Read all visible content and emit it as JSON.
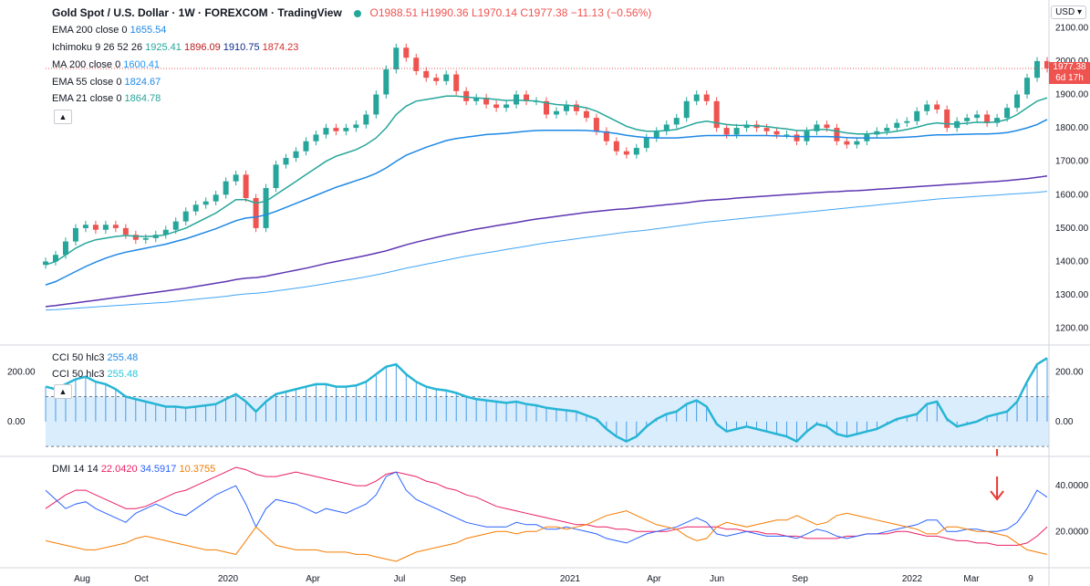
{
  "header": {
    "symbol": "Gold Spot / U.S. Dollar · 1W · FOREXCOM · TradingView",
    "open": "O1988.51",
    "high": "H1990.36",
    "low": "L1970.14",
    "close": "C1977.38",
    "change": "−11.13 (−0.56%)"
  },
  "currency": "USD",
  "last_price": {
    "value": "1977.38",
    "countdown": "6d 17h"
  },
  "legends": {
    "ema200": {
      "label": "EMA 200 close 0",
      "value": "1655.54",
      "color": "#1e88e5"
    },
    "ichimoku": {
      "label": "Ichimoku 9 26 52 26",
      "v1": "1925.41",
      "v2": "1896.09",
      "v3": "1910.75",
      "v4": "1874.23"
    },
    "ma200": {
      "label": "MA 200 close 0",
      "value": "1600.41",
      "color": "#2196f3"
    },
    "ema55": {
      "label": "EMA 55 close 0",
      "value": "1824.67",
      "color": "#1e88e5"
    },
    "ema21": {
      "label": "EMA 21 close 0",
      "value": "1864.78",
      "color": "#26a69a"
    },
    "cci_a": {
      "label": "CCI 50 hlc3",
      "value": "255.48"
    },
    "cci_b": {
      "label": "CCI 50 hlc3",
      "value": "255.48"
    },
    "dmi": {
      "label": "DMI 14 14",
      "adx": "22.0420",
      "plus": "34.5917",
      "minus": "10.3755"
    }
  },
  "chart_data": {
    "type": "line",
    "ylim": [
      1150,
      2150
    ],
    "price_ticks": [
      "2100.00",
      "2000.00",
      "1900.00",
      "1800.00",
      "1700.00",
      "1600.00",
      "1500.00",
      "1400.00",
      "1300.00",
      "1200.00"
    ],
    "cci_ticks": [
      "200.00",
      "0.00"
    ],
    "dmi_ticks": [
      "40.0000",
      "20.0000"
    ],
    "x_labels": [
      "Aug",
      "Oct",
      "2020",
      "Apr",
      "Jul",
      "Sep",
      "2021",
      "Apr",
      "Jun",
      "Sep",
      "2022",
      "Mar",
      "9"
    ],
    "cci_levels": [
      100,
      -100
    ],
    "price": [
      1400,
      1420,
      1460,
      1500,
      1510,
      1495,
      1510,
      1500,
      1480,
      1465,
      1470,
      1480,
      1495,
      1520,
      1550,
      1570,
      1580,
      1600,
      1640,
      1660,
      1590,
      1500,
      1620,
      1690,
      1710,
      1730,
      1760,
      1780,
      1800,
      1790,
      1800,
      1810,
      1840,
      1900,
      1975,
      2040,
      2010,
      1970,
      1950,
      1940,
      1960,
      1910,
      1880,
      1890,
      1870,
      1860,
      1870,
      1900,
      1880,
      1880,
      1840,
      1850,
      1870,
      1850,
      1830,
      1790,
      1760,
      1730,
      1720,
      1740,
      1770,
      1790,
      1810,
      1830,
      1880,
      1900,
      1880,
      1800,
      1780,
      1800,
      1810,
      1800,
      1790,
      1780,
      1780,
      1760,
      1790,
      1810,
      1800,
      1760,
      1750,
      1760,
      1780,
      1790,
      1800,
      1815,
      1820,
      1850,
      1870,
      1855,
      1800,
      1820,
      1830,
      1840,
      1815,
      1830,
      1860,
      1900,
      1950,
      2000,
      1978
    ],
    "ema21": [
      1390,
      1400,
      1420,
      1440,
      1455,
      1465,
      1470,
      1475,
      1478,
      1476,
      1475,
      1476,
      1480,
      1490,
      1500,
      1515,
      1530,
      1545,
      1565,
      1585,
      1585,
      1575,
      1580,
      1600,
      1620,
      1640,
      1660,
      1680,
      1700,
      1715,
      1725,
      1735,
      1750,
      1770,
      1800,
      1840,
      1865,
      1880,
      1885,
      1890,
      1895,
      1895,
      1892,
      1890,
      1888,
      1885,
      1882,
      1883,
      1882,
      1880,
      1875,
      1870,
      1868,
      1865,
      1860,
      1850,
      1835,
      1820,
      1805,
      1795,
      1790,
      1790,
      1792,
      1795,
      1805,
      1815,
      1820,
      1815,
      1810,
      1808,
      1807,
      1806,
      1804,
      1800,
      1797,
      1792,
      1792,
      1795,
      1795,
      1790,
      1785,
      1782,
      1782,
      1784,
      1786,
      1790,
      1795,
      1802,
      1810,
      1815,
      1812,
      1812,
      1814,
      1817,
      1816,
      1818,
      1825,
      1840,
      1860,
      1880,
      1890
    ],
    "ema55": [
      1330,
      1340,
      1355,
      1370,
      1385,
      1398,
      1410,
      1420,
      1428,
      1434,
      1440,
      1446,
      1452,
      1460,
      1468,
      1478,
      1488,
      1498,
      1510,
      1522,
      1530,
      1533,
      1540,
      1550,
      1562,
      1574,
      1586,
      1598,
      1610,
      1622,
      1632,
      1642,
      1652,
      1664,
      1680,
      1700,
      1718,
      1730,
      1742,
      1752,
      1762,
      1768,
      1772,
      1776,
      1780,
      1782,
      1784,
      1787,
      1790,
      1792,
      1793,
      1793,
      1793,
      1793,
      1792,
      1790,
      1787,
      1783,
      1778,
      1774,
      1771,
      1770,
      1770,
      1770,
      1772,
      1775,
      1777,
      1777,
      1777,
      1777,
      1777,
      1777,
      1777,
      1776,
      1775,
      1774,
      1774,
      1774,
      1774,
      1773,
      1771,
      1770,
      1770,
      1770,
      1770,
      1771,
      1772,
      1774,
      1777,
      1779,
      1779,
      1780,
      1781,
      1782,
      1782,
      1783,
      1786,
      1792,
      1800,
      1810,
      1825
    ],
    "ema200": [
      1265,
      1268,
      1272,
      1276,
      1280,
      1284,
      1288,
      1292,
      1296,
      1300,
      1304,
      1308,
      1312,
      1316,
      1320,
      1325,
      1330,
      1335,
      1340,
      1346,
      1350,
      1352,
      1356,
      1362,
      1368,
      1374,
      1380,
      1387,
      1394,
      1400,
      1406,
      1412,
      1418,
      1425,
      1432,
      1441,
      1450,
      1458,
      1465,
      1472,
      1479,
      1485,
      1491,
      1497,
      1502,
      1507,
      1512,
      1517,
      1522,
      1527,
      1531,
      1535,
      1539,
      1543,
      1547,
      1550,
      1553,
      1556,
      1558,
      1561,
      1564,
      1567,
      1570,
      1573,
      1576,
      1580,
      1583,
      1585,
      1587,
      1590,
      1592,
      1594,
      1596,
      1598,
      1600,
      1602,
      1604,
      1606,
      1608,
      1609,
      1611,
      1612,
      1614,
      1616,
      1618,
      1620,
      1622,
      1624,
      1626,
      1628,
      1630,
      1632,
      1634,
      1636,
      1638,
      1640,
      1642,
      1645,
      1648,
      1652,
      1656
    ],
    "ma200": [
      1255,
      1256,
      1258,
      1260,
      1262,
      1264,
      1266,
      1268,
      1270,
      1272,
      1274,
      1276,
      1278,
      1281,
      1284,
      1287,
      1290,
      1293,
      1296,
      1300,
      1303,
      1305,
      1308,
      1312,
      1316,
      1320,
      1324,
      1329,
      1334,
      1339,
      1344,
      1349,
      1354,
      1360,
      1366,
      1373,
      1380,
      1386,
      1392,
      1398,
      1404,
      1410,
      1416,
      1421,
      1426,
      1431,
      1436,
      1441,
      1446,
      1451,
      1456,
      1460,
      1464,
      1468,
      1472,
      1476,
      1480,
      1484,
      1488,
      1491,
      1494,
      1498,
      1502,
      1506,
      1510,
      1514,
      1518,
      1521,
      1524,
      1527,
      1530,
      1533,
      1536,
      1539,
      1542,
      1545,
      1548,
      1551,
      1554,
      1557,
      1560,
      1563,
      1566,
      1569,
      1572,
      1575,
      1578,
      1581,
      1584,
      1587,
      1589,
      1591,
      1593,
      1595,
      1597,
      1599,
      1601,
      1603,
      1605,
      1607,
      1610
    ],
    "cci": [
      140,
      130,
      150,
      170,
      180,
      160,
      150,
      130,
      100,
      90,
      80,
      70,
      60,
      60,
      55,
      60,
      65,
      70,
      90,
      110,
      80,
      40,
      80,
      110,
      120,
      130,
      140,
      150,
      150,
      140,
      140,
      145,
      160,
      190,
      220,
      230,
      190,
      160,
      140,
      130,
      125,
      115,
      100,
      90,
      85,
      80,
      75,
      80,
      70,
      65,
      55,
      50,
      45,
      40,
      25,
      10,
      -30,
      -60,
      -80,
      -60,
      -20,
      10,
      30,
      40,
      70,
      85,
      60,
      -10,
      -40,
      -30,
      -20,
      -30,
      -40,
      -50,
      -60,
      -80,
      -40,
      -10,
      -20,
      -50,
      -60,
      -50,
      -40,
      -30,
      -10,
      10,
      20,
      30,
      70,
      80,
      10,
      -20,
      -10,
      0,
      20,
      30,
      40,
      80,
      160,
      230,
      255
    ],
    "dmi_adx": [
      30,
      33,
      36,
      38,
      38,
      36,
      34,
      32,
      30,
      30,
      31,
      33,
      35,
      37,
      38,
      40,
      42,
      44,
      46,
      48,
      47,
      45,
      44,
      44,
      45,
      46,
      45,
      44,
      43,
      42,
      41,
      40,
      40,
      42,
      45,
      46,
      45,
      44,
      42,
      41,
      39,
      38,
      36,
      35,
      33,
      31,
      30,
      29,
      28,
      27,
      26,
      25,
      24,
      23,
      23,
      22,
      22,
      21,
      21,
      20,
      20,
      20,
      20,
      21,
      22,
      22,
      22,
      22,
      21,
      21,
      20,
      20,
      19,
      19,
      18,
      18,
      17,
      17,
      17,
      17,
      18,
      18,
      19,
      19,
      19,
      20,
      20,
      19,
      18,
      18,
      17,
      16,
      16,
      15,
      15,
      14,
      14,
      14,
      15,
      18,
      22
    ],
    "dmi_plus": [
      38,
      34,
      30,
      32,
      33,
      30,
      28,
      26,
      24,
      28,
      30,
      32,
      30,
      28,
      27,
      30,
      33,
      36,
      38,
      40,
      32,
      22,
      30,
      34,
      33,
      32,
      30,
      28,
      30,
      29,
      28,
      30,
      32,
      36,
      44,
      46,
      38,
      34,
      32,
      30,
      28,
      26,
      24,
      23,
      22,
      22,
      22,
      24,
      23,
      23,
      21,
      21,
      22,
      21,
      20,
      19,
      17,
      16,
      15,
      17,
      19,
      20,
      21,
      22,
      24,
      26,
      24,
      19,
      18,
      19,
      20,
      19,
      18,
      18,
      18,
      17,
      19,
      21,
      20,
      18,
      17,
      18,
      19,
      19,
      20,
      21,
      22,
      23,
      25,
      25,
      20,
      20,
      21,
      21,
      20,
      20,
      21,
      24,
      30,
      38,
      35
    ],
    "dmi_minus": [
      16,
      15,
      14,
      13,
      12,
      12,
      13,
      14,
      15,
      17,
      18,
      17,
      16,
      15,
      14,
      13,
      12,
      12,
      11,
      10,
      16,
      22,
      18,
      14,
      13,
      12,
      12,
      12,
      11,
      11,
      11,
      10,
      10,
      9,
      8,
      7,
      9,
      11,
      12,
      13,
      14,
      15,
      17,
      18,
      19,
      20,
      20,
      19,
      20,
      20,
      22,
      22,
      21,
      22,
      23,
      25,
      27,
      28,
      29,
      27,
      25,
      23,
      22,
      21,
      18,
      16,
      17,
      22,
      24,
      23,
      22,
      23,
      24,
      25,
      25,
      27,
      25,
      23,
      24,
      27,
      28,
      27,
      26,
      25,
      24,
      23,
      22,
      21,
      19,
      19,
      22,
      22,
      21,
      20,
      20,
      19,
      18,
      15,
      12,
      11,
      10
    ]
  }
}
